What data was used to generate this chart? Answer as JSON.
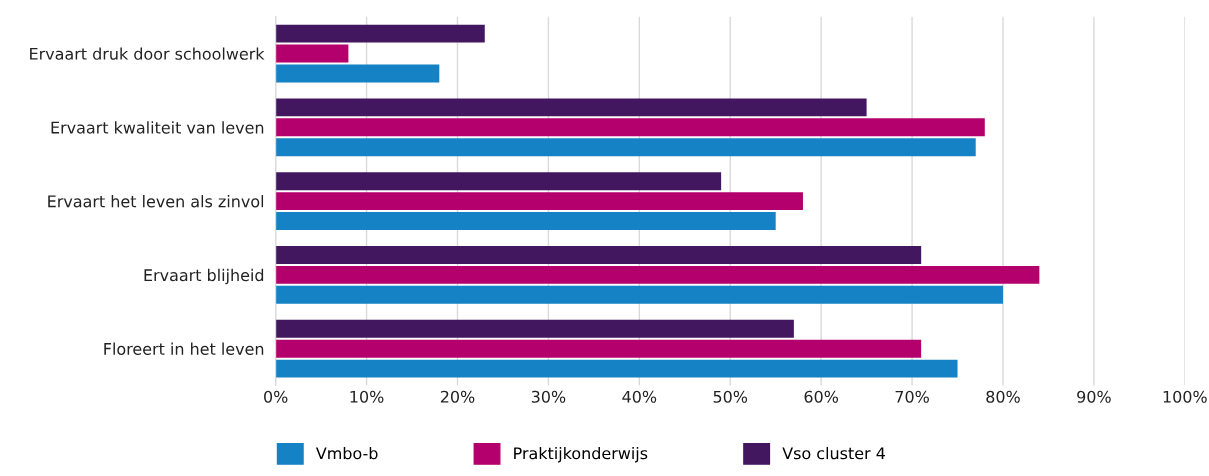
{
  "chart_data": {
    "type": "bar",
    "orientation": "horizontal",
    "categories": [
      "Ervaart druk door schoolwerk",
      "Ervaart kwaliteit van leven",
      "Ervaart het leven als zinvol",
      "Ervaart blijheid",
      "Floreert in het leven"
    ],
    "series": [
      {
        "name": "Vmbo-b",
        "color": "#1582c5",
        "values": [
          18,
          77,
          55,
          80,
          75
        ]
      },
      {
        "name": "Praktijkonderwijs",
        "color": "#b4006c",
        "values": [
          8,
          78,
          58,
          84,
          71
        ]
      },
      {
        "name": "Vso cluster 4",
        "color": "#42175f",
        "values": [
          23,
          65,
          49,
          71,
          57
        ]
      }
    ],
    "xlim": [
      0,
      100
    ],
    "xticks": [
      {
        "value": 0,
        "label": "0%"
      },
      {
        "value": 10,
        "label": "10%"
      },
      {
        "value": 20,
        "label": "20%"
      },
      {
        "value": 30,
        "label": "30%"
      },
      {
        "value": 40,
        "label": "40%"
      },
      {
        "value": 50,
        "label": "50%"
      },
      {
        "value": 60,
        "label": "60%"
      },
      {
        "value": 70,
        "label": "70%"
      },
      {
        "value": 80,
        "label": "80%"
      },
      {
        "value": 90,
        "label": "90%"
      },
      {
        "value": 100,
        "label": "100%"
      }
    ],
    "grid": "x",
    "legend": "bottom"
  }
}
